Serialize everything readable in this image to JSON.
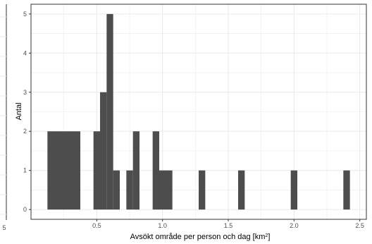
{
  "chart_data": {
    "type": "bar",
    "title": "",
    "xlabel_main": "Avsökt område per person och dag [km",
    "xlabel_sup": "2",
    "xlabel_close": "]",
    "ylabel": "Antal",
    "xlim": [
      0,
      2.55
    ],
    "ylim": [
      -0.25,
      5.25
    ],
    "x_ticks": [
      {
        "value": 0.5,
        "label": "0.5"
      },
      {
        "value": 1.0,
        "label": "1.0"
      },
      {
        "value": 1.5,
        "label": "1.5"
      },
      {
        "value": 2.0,
        "label": "2.0"
      },
      {
        "value": 2.5,
        "label": "2.5"
      }
    ],
    "y_ticks": [
      {
        "value": 0,
        "label": "0"
      },
      {
        "value": 1,
        "label": "1"
      },
      {
        "value": 2,
        "label": "2"
      },
      {
        "value": 3,
        "label": "3"
      },
      {
        "value": 4,
        "label": "4"
      },
      {
        "value": 5,
        "label": "5"
      }
    ],
    "bins": [
      {
        "x0": 0.125,
        "x1": 0.375,
        "count": 2
      },
      {
        "x0": 0.475,
        "x1": 0.525,
        "count": 2
      },
      {
        "x0": 0.525,
        "x1": 0.575,
        "count": 3
      },
      {
        "x0": 0.575,
        "x1": 0.625,
        "count": 5
      },
      {
        "x0": 0.625,
        "x1": 0.675,
        "count": 1
      },
      {
        "x0": 0.725,
        "x1": 0.775,
        "count": 1
      },
      {
        "x0": 0.775,
        "x1": 0.825,
        "count": 2
      },
      {
        "x0": 0.925,
        "x1": 0.975,
        "count": 2
      },
      {
        "x0": 0.975,
        "x1": 1.075,
        "count": 1
      },
      {
        "x0": 1.275,
        "x1": 1.325,
        "count": 1
      },
      {
        "x0": 1.575,
        "x1": 1.625,
        "count": 1
      },
      {
        "x0": 1.975,
        "x1": 2.025,
        "count": 1
      },
      {
        "x0": 2.375,
        "x1": 2.425,
        "count": 1
      }
    ],
    "bar_color": "#4d4d4d",
    "grid": true,
    "grid_color": "#ebebeb",
    "panel_border_color": "#333333",
    "left_panel_fragment_tick": "5",
    "legend": "none"
  }
}
